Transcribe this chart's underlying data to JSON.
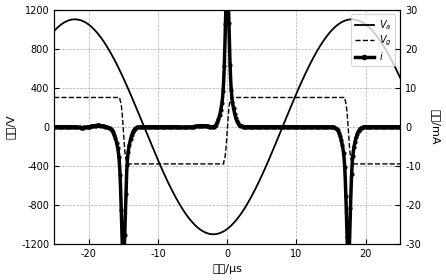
{
  "xlabel": "时间/μs",
  "ylabel_left": "电压/V",
  "ylabel_right": "电流/mA",
  "xlim": [
    -25,
    25
  ],
  "ylim_left": [
    -1200,
    1200
  ],
  "ylim_right": [
    -30,
    30
  ],
  "xticks": [
    -20,
    -10,
    0,
    10,
    20
  ],
  "yticks_left": [
    -1200,
    -800,
    -400,
    0,
    400,
    800,
    1200
  ],
  "yticks_right": [
    -30,
    -20,
    -10,
    0,
    10,
    20,
    30
  ],
  "legend_Va": "$V_a$",
  "legend_Vg": "$V_g$",
  "legend_i": "$i$",
  "Va_color": "#000000",
  "Vg_color": "#000000",
  "i_color": "#000000",
  "background_color": "#ffffff",
  "grid_color": "#999999",
  "Va_amp": 1100,
  "Va_period": 40,
  "Va_phase_deg": 90,
  "Vg_high": 300,
  "Vg_low": -380,
  "discharge1_t": -15.0,
  "discharge2_t": 0.0,
  "discharge3_t": 17.5,
  "i_spike1_amp": -25,
  "i_spike2_amp": 27,
  "i_spike3_amp": -25,
  "i_spike_sigma_narrow": 0.25,
  "i_spike_sigma_wide": 0.7
}
